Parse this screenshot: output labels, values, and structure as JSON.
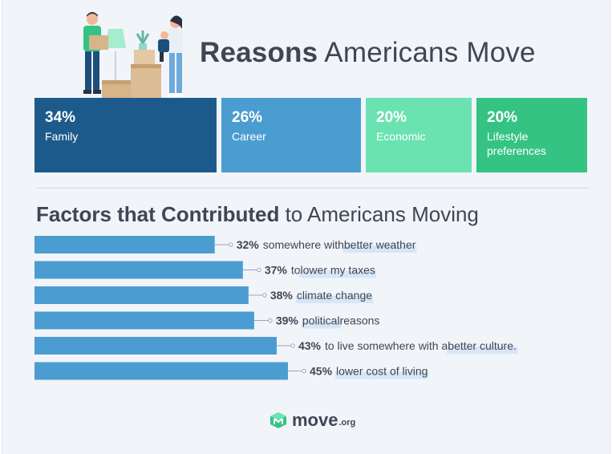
{
  "title": {
    "bold": "Reasons",
    "rest": " Americans Move"
  },
  "reasons": [
    {
      "percent": "34%",
      "label": "Family",
      "color": "#1c5a8c"
    },
    {
      "percent": "26%",
      "label": "Career",
      "color": "#4b9dd1"
    },
    {
      "percent": "20%",
      "label": "Economic",
      "color": "#6ae3b1"
    },
    {
      "percent": "20%",
      "label": "Lifestyle preferences",
      "color": "#35c384"
    }
  ],
  "factors_title": {
    "bold": "Factors that Contributed",
    "rest": " to Americans Moving"
  },
  "chart_data": {
    "type": "bar",
    "orientation": "horizontal",
    "bar_color": "#4b9dd1",
    "highlight_color": "#d6e6f6",
    "xlim": [
      0,
      45
    ],
    "bars": [
      {
        "value": 32,
        "label": "32%",
        "parts": [
          {
            "t": "somewhere with ",
            "h": false
          },
          {
            "t": "better weather",
            "h": true
          }
        ]
      },
      {
        "value": 37,
        "label": "37%",
        "parts": [
          {
            "t": "to ",
            "h": false
          },
          {
            "t": "lower my taxes",
            "h": true
          }
        ]
      },
      {
        "value": 38,
        "label": "38%",
        "parts": [
          {
            "t": "climate change",
            "h": true
          }
        ]
      },
      {
        "value": 39,
        "label": "39%",
        "parts": [
          {
            "t": "political",
            "h": true
          },
          {
            "t": " reasons",
            "h": false
          }
        ]
      },
      {
        "value": 43,
        "label": "43%",
        "parts": [
          {
            "t": "to live somewhere with a ",
            "h": false
          },
          {
            "t": "better culture.",
            "h": true
          }
        ]
      },
      {
        "value": 45,
        "label": "45%",
        "parts": [
          {
            "t": "lower cost of living",
            "h": true
          }
        ]
      }
    ]
  },
  "logo": {
    "word": "move",
    "tld": ".org",
    "color": "#35c384"
  }
}
